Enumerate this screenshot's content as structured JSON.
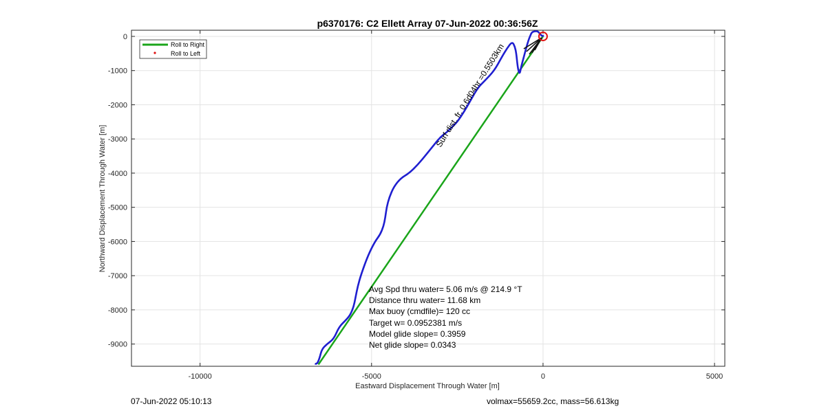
{
  "chart_data": {
    "type": "line",
    "title": "p6370176: C2 Ellett Array 07-Jun-2022 00:36:56Z",
    "xlabel": "Eastward Displacement Through Water [m]",
    "ylabel": "Northward Displacement Through Water [m]",
    "xlim": [
      -12000,
      5300
    ],
    "ylim": [
      -9650,
      180
    ],
    "xticks": [
      -10000,
      -5000,
      0,
      5000
    ],
    "yticks": [
      0,
      -1000,
      -2000,
      -3000,
      -4000,
      -5000,
      -6000,
      -7000,
      -8000,
      -9000
    ],
    "grid": true,
    "legend_position": "top-left",
    "legend": [
      {
        "label": "Roll to Right",
        "style": "line",
        "color": "#1aa51a"
      },
      {
        "label": "Roll to Left",
        "style": "dot",
        "color": "#e01010"
      }
    ],
    "series": [
      {
        "name": "Roll to Right",
        "color": "#1aa51a",
        "x": [
          -6550,
          0
        ],
        "y": [
          -9600,
          0
        ]
      },
      {
        "color": "#1f1fd0",
        "x": [
          -6650,
          -6600,
          -6520,
          -6450,
          -6300,
          -6100,
          -5950,
          -5750,
          -5620,
          -5520,
          -5470,
          -5400,
          -5300,
          -5100,
          -4900,
          -4750,
          -4650,
          -4600,
          -4560,
          -4480,
          -4350,
          -4150,
          -3900,
          -3650,
          -3400,
          -3200,
          -3000,
          -2800,
          -2650,
          -2500,
          -2300,
          -2100,
          -1900,
          -1700,
          -1420,
          -1200,
          -1050,
          -900,
          -820,
          -780,
          -750,
          -720,
          -680,
          -640,
          -560,
          -480,
          -420,
          -380,
          -330,
          -250,
          -150,
          -80,
          -20,
          20
        ],
        "y": [
          -9570,
          -9600,
          -9430,
          -9150,
          -9000,
          -8850,
          -8500,
          -8300,
          -8150,
          -7900,
          -7650,
          -7300,
          -6950,
          -6400,
          -6000,
          -5800,
          -5550,
          -5300,
          -5000,
          -4700,
          -4400,
          -4150,
          -4000,
          -3750,
          -3450,
          -3200,
          -2950,
          -2800,
          -2650,
          -2500,
          -2200,
          -1850,
          -1500,
          -1300,
          -1000,
          -600,
          -350,
          -150,
          -300,
          -500,
          -800,
          -1000,
          -1100,
          -900,
          -600,
          -300,
          -100,
          0,
          120,
          150,
          150,
          60,
          0,
          30
        ]
      }
    ],
    "markers": [
      {
        "type": "circle",
        "color": "#e01010",
        "x": 0,
        "y": 0
      }
    ],
    "annotations": [
      {
        "kind": "rotated",
        "text": "Surf dist. fr. 0.6d04hr =0.5503km"
      }
    ],
    "stats": [
      "Avg Spd thru water=  5.06 m/s @ 214.9 °T",
      "Distance thru water= 11.68 km",
      "Max buoy (cmdfile)= 120 cc",
      "Target w= 0.0952381 m/s",
      "Model glide slope= 0.3959",
      "Net glide slope= 0.0343"
    ]
  },
  "footer": {
    "left": "07-Jun-2022 05:10:13",
    "right": "volmax=55659.2cc, mass=56.613kg"
  }
}
